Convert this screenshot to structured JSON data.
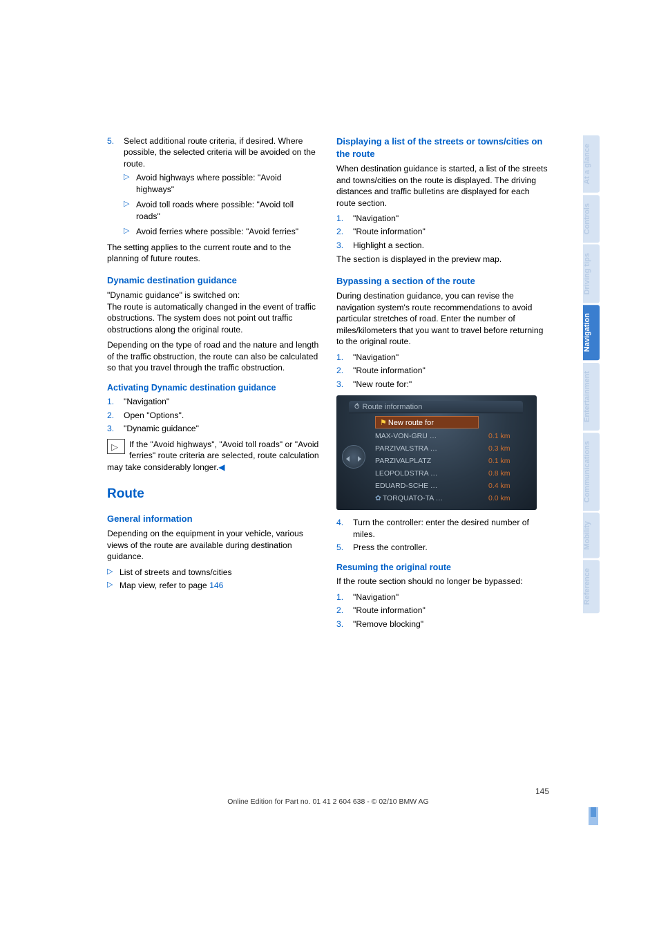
{
  "left": {
    "step5_num": "5.",
    "step5_text": "Select additional route criteria, if desired. Where possible, the selected criteria will be avoided on the route.",
    "step5_items": [
      "Avoid highways where possible: \"Avoid highways\"",
      "Avoid toll roads where possible: \"Avoid toll roads\"",
      "Avoid ferries where possible: \"Avoid ferries\""
    ],
    "setting_applies": "The setting applies to the current route and to the planning of future routes.",
    "h_dyn": "Dynamic destination guidance",
    "dyn_p1": "\"Dynamic guidance\" is switched on:",
    "dyn_p1b": "The route is automatically changed in the event of traffic obstructions. The system does not point out traffic obstructions along the original route.",
    "dyn_p2": "Depending on the type of road and the nature and length of the traffic obstruction, the route can also be calculated so that you travel through the traffic obstruction.",
    "h_act": "Activating Dynamic destination guidance",
    "act_steps": [
      "\"Navigation\"",
      "Open \"Options\".",
      "\"Dynamic guidance\""
    ],
    "note": "If the \"Avoid highways\", \"Avoid toll roads\" or \"Avoid ferries\" route criteria are selected, route calculation may take considerably longer.",
    "h_route": "Route",
    "h_gen": "General information",
    "gen_p": "Depending on the equipment in your vehicle, various views of the route are available during destination guidance.",
    "gen_items": [
      "List of streets and towns/cities"
    ],
    "gen_map_prefix": "Map view, refer to page ",
    "gen_map_page": "146"
  },
  "right": {
    "h_disp": "Displaying a list of the streets or towns/cities on the route",
    "disp_p": "When destination guidance is started, a list of the streets and towns/cities on the route is displayed. The driving distances and traffic bulletins are displayed for each route section.",
    "disp_steps": [
      "\"Navigation\"",
      "\"Route information\"",
      "Highlight a section."
    ],
    "disp_after": "The section is displayed in the preview map.",
    "h_bypass": "Bypassing a section of the route",
    "bypass_p": "During destination guidance, you can revise the navigation system's route recommendations to avoid particular stretches of road. Enter the number of miles/kilometers that you want to travel before returning to the original route.",
    "bypass_steps_a": [
      "\"Navigation\"",
      "\"Route information\"",
      "\"New route for:\""
    ],
    "shot": {
      "title": "Route information",
      "header": "New route for",
      "rows": [
        {
          "name": "MAX-VON-GRU …",
          "dist": "0.1 km"
        },
        {
          "name": "PARZIVALSTRA …",
          "dist": "0.3 km"
        },
        {
          "name": "PARZIVALPLATZ",
          "dist": "0.1 km"
        },
        {
          "name": "LEOPOLDSTRA …",
          "dist": "0.8 km"
        },
        {
          "name": "EDUARD-SCHE …",
          "dist": "0.4 km"
        },
        {
          "name": "TORQUATO-TA …",
          "dist": "0.0 km",
          "pre": "✿"
        }
      ]
    },
    "bypass_steps_b": [
      {
        "n": "4.",
        "t": "Turn the controller: enter the desired number of miles."
      },
      {
        "n": "5.",
        "t": "Press the controller."
      }
    ],
    "h_resume": "Resuming the original route",
    "resume_p": "If the route section should no longer be bypassed:",
    "resume_steps": [
      "\"Navigation\"",
      "\"Route information\"",
      "\"Remove blocking\""
    ]
  },
  "tabs": [
    "At a glance",
    "Controls",
    "Driving tips",
    "Navigation",
    "Entertainment",
    "Communications",
    "Mobility",
    "Reference"
  ],
  "active_tab_index": 3,
  "footer": {
    "page": "145",
    "edition": "Online Edition for Part no. 01 41 2 604 638 - © 02/10 BMW AG"
  }
}
